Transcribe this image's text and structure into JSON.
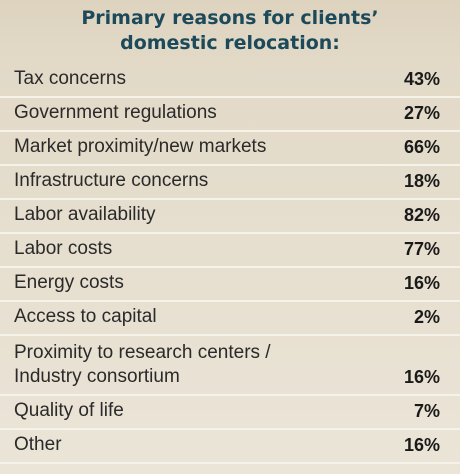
{
  "chart_data": {
    "type": "table",
    "title": "Primary reasons for clients’ domestic relocation:",
    "title_lines": [
      "Primary reasons for clients’",
      "domestic relocation:"
    ],
    "rows": [
      {
        "label_lines": [
          "Tax concerns"
        ],
        "value": "43%"
      },
      {
        "label_lines": [
          "Government regulations"
        ],
        "value": "27%"
      },
      {
        "label_lines": [
          "Market proximity/new markets"
        ],
        "value": "66%"
      },
      {
        "label_lines": [
          "Infrastructure concerns"
        ],
        "value": "18%"
      },
      {
        "label_lines": [
          "Labor availability"
        ],
        "value": "82%"
      },
      {
        "label_lines": [
          "Labor costs"
        ],
        "value": "77%"
      },
      {
        "label_lines": [
          "Energy costs"
        ],
        "value": "16%"
      },
      {
        "label_lines": [
          "Access to capital"
        ],
        "value": "2%"
      },
      {
        "label_lines": [
          "Proximity to research centers /",
          "Industry consortium"
        ],
        "value": "16%"
      },
      {
        "label_lines": [
          "Quality of life"
        ],
        "value": "7%"
      },
      {
        "label_lines": [
          "Other"
        ],
        "value": "16%"
      }
    ]
  }
}
